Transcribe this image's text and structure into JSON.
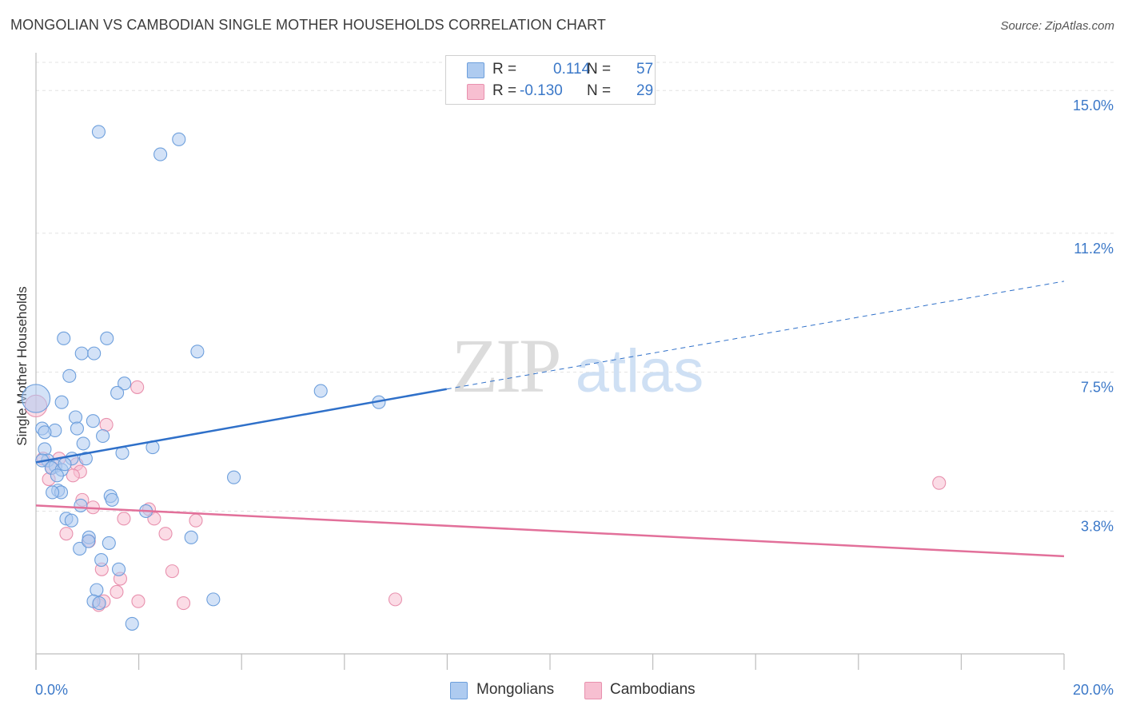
{
  "header": {
    "title": "MONGOLIAN VS CAMBODIAN SINGLE MOTHER HOUSEHOLDS CORRELATION CHART",
    "source": "Source: ZipAtlas.com"
  },
  "legend": {
    "rows": [
      {
        "r_label": "R =",
        "r_value": "0.114",
        "n_label": "N =",
        "n_value": "57"
      },
      {
        "r_label": "R =",
        "r_value": "-0.130",
        "n_label": "N =",
        "n_value": "29"
      }
    ]
  },
  "bottom_legend": {
    "series1": "Mongolians",
    "series2": "Cambodians"
  },
  "watermark": {
    "zip": "ZIP",
    "atlas": "atlas"
  },
  "colors": {
    "mongolian_fill": "#aecbf0",
    "mongolian_stroke": "#6d9fdc",
    "mongolian_line": "#2f70c9",
    "cambodian_fill": "#f7bfd1",
    "cambodian_stroke": "#e891ae",
    "cambodian_line": "#e2709a",
    "tick_label": "#3b78c8"
  },
  "chart_data": {
    "type": "scatter",
    "title": "MONGOLIAN VS CAMBODIAN SINGLE MOTHER HOUSEHOLDS CORRELATION CHART",
    "xlabel": "",
    "ylabel": "Single Mother Households",
    "xlim": [
      0,
      20
    ],
    "ylim": [
      0,
      15.75
    ],
    "x_tick_labels": [
      {
        "value": 0,
        "label": "0.0%"
      },
      {
        "value": 20,
        "label": "20.0%"
      }
    ],
    "y_tick_labels": [
      {
        "value": 3.8,
        "label": "3.8%"
      },
      {
        "value": 7.5,
        "label": "7.5%"
      },
      {
        "value": 11.2,
        "label": "11.2%"
      },
      {
        "value": 15.0,
        "label": "15.0%"
      }
    ],
    "grid": true,
    "legend_position": "top-center",
    "series": [
      {
        "name": "Mongolians",
        "r": 0.114,
        "n": 57,
        "trend": {
          "x0": 0,
          "y0": 5.1,
          "x1": 7.99,
          "y1": 7.05,
          "dashed_to_x": 20.0,
          "dashed_to_y": 9.92
        },
        "points": [
          [
            0.0,
            6.8,
            2.2
          ],
          [
            1.22,
            13.9,
            1
          ],
          [
            2.78,
            13.7,
            1
          ],
          [
            2.42,
            13.3,
            1
          ],
          [
            0.54,
            8.4,
            1
          ],
          [
            1.38,
            8.4,
            1
          ],
          [
            0.89,
            8.0,
            1
          ],
          [
            1.13,
            8.0,
            1
          ],
          [
            3.14,
            8.05,
            1
          ],
          [
            0.65,
            7.4,
            1
          ],
          [
            1.72,
            7.2,
            1
          ],
          [
            1.58,
            6.95,
            1
          ],
          [
            5.54,
            7.0,
            1
          ],
          [
            6.67,
            6.7,
            1
          ],
          [
            0.5,
            6.7,
            1
          ],
          [
            0.77,
            6.3,
            1
          ],
          [
            1.11,
            6.2,
            1
          ],
          [
            0.8,
            6.0,
            1
          ],
          [
            0.37,
            5.95,
            1
          ],
          [
            0.12,
            6.0,
            1
          ],
          [
            0.17,
            5.9,
            1
          ],
          [
            1.3,
            5.8,
            1
          ],
          [
            0.92,
            5.6,
            1
          ],
          [
            0.17,
            5.45,
            1
          ],
          [
            1.68,
            5.35,
            1
          ],
          [
            2.27,
            5.5,
            1
          ],
          [
            0.7,
            5.2,
            1
          ],
          [
            0.97,
            5.2,
            1
          ],
          [
            0.23,
            5.15,
            1
          ],
          [
            0.12,
            5.15,
            1
          ],
          [
            0.38,
            5.0,
            1
          ],
          [
            0.3,
            4.95,
            1
          ],
          [
            0.5,
            4.9,
            1
          ],
          [
            0.56,
            5.05,
            1
          ],
          [
            0.41,
            4.75,
            1
          ],
          [
            3.85,
            4.7,
            1
          ],
          [
            0.43,
            4.35,
            1
          ],
          [
            0.49,
            4.3,
            1
          ],
          [
            0.32,
            4.3,
            1
          ],
          [
            1.45,
            4.2,
            1
          ],
          [
            1.48,
            4.1,
            1
          ],
          [
            0.87,
            3.95,
            1
          ],
          [
            2.14,
            3.8,
            1
          ],
          [
            0.59,
            3.6,
            1
          ],
          [
            0.69,
            3.55,
            1
          ],
          [
            1.03,
            3.1,
            1
          ],
          [
            3.02,
            3.1,
            1
          ],
          [
            1.42,
            2.95,
            1
          ],
          [
            0.85,
            2.8,
            1
          ],
          [
            1.27,
            2.5,
            1
          ],
          [
            1.61,
            2.25,
            1
          ],
          [
            1.18,
            1.7,
            1
          ],
          [
            1.12,
            1.4,
            1
          ],
          [
            1.23,
            1.35,
            1
          ],
          [
            3.45,
            1.45,
            1
          ],
          [
            1.87,
            0.8,
            1
          ],
          [
            1.02,
            3.0,
            1
          ]
        ]
      },
      {
        "name": "Cambodians",
        "r": -0.13,
        "n": 29,
        "trend": {
          "x0": 0,
          "y0": 3.95,
          "x1": 20.0,
          "y1": 2.6
        },
        "points": [
          [
            0.0,
            6.6,
            1.7
          ],
          [
            1.97,
            7.1,
            1
          ],
          [
            1.37,
            6.1,
            1
          ],
          [
            0.14,
            5.2,
            1
          ],
          [
            0.45,
            5.2,
            1
          ],
          [
            0.79,
            5.05,
            1
          ],
          [
            0.31,
            4.95,
            1
          ],
          [
            0.86,
            4.85,
            1
          ],
          [
            0.72,
            4.75,
            1
          ],
          [
            0.25,
            4.65,
            1
          ],
          [
            17.57,
            4.55,
            1
          ],
          [
            0.9,
            4.1,
            1
          ],
          [
            1.11,
            3.9,
            1
          ],
          [
            2.2,
            3.85,
            1
          ],
          [
            2.3,
            3.6,
            1
          ],
          [
            1.71,
            3.6,
            1
          ],
          [
            3.11,
            3.55,
            1
          ],
          [
            0.59,
            3.2,
            1
          ],
          [
            2.52,
            3.2,
            1
          ],
          [
            1.03,
            3.0,
            1
          ],
          [
            1.28,
            2.25,
            1
          ],
          [
            2.65,
            2.2,
            1
          ],
          [
            1.64,
            2.0,
            1
          ],
          [
            1.57,
            1.65,
            1
          ],
          [
            1.99,
            1.4,
            1
          ],
          [
            6.99,
            1.45,
            1
          ],
          [
            2.87,
            1.35,
            1
          ],
          [
            1.22,
            1.3,
            1
          ],
          [
            1.32,
            1.4,
            1
          ]
        ]
      }
    ]
  }
}
